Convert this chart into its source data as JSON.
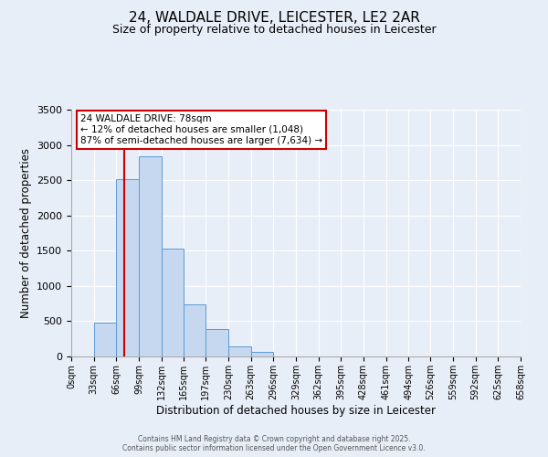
{
  "title": "24, WALDALE DRIVE, LEICESTER, LE2 2AR",
  "subtitle": "Size of property relative to detached houses in Leicester",
  "xlabel": "Distribution of detached houses by size in Leicester",
  "ylabel": "Number of detached properties",
  "bar_values": [
    0,
    480,
    2520,
    2840,
    1530,
    740,
    390,
    145,
    60,
    0,
    0,
    0,
    0,
    0,
    0,
    0,
    0,
    0,
    0,
    0
  ],
  "bin_edges": [
    0,
    33,
    66,
    99,
    132,
    165,
    197,
    230,
    263,
    296,
    329,
    362,
    395,
    428,
    461,
    494,
    526,
    559,
    592,
    625,
    658
  ],
  "tick_labels": [
    "0sqm",
    "33sqm",
    "66sqm",
    "99sqm",
    "132sqm",
    "165sqm",
    "197sqm",
    "230sqm",
    "263sqm",
    "296sqm",
    "329sqm",
    "362sqm",
    "395sqm",
    "428sqm",
    "461sqm",
    "494sqm",
    "526sqm",
    "559sqm",
    "592sqm",
    "625sqm",
    "658sqm"
  ],
  "bar_color": "#c5d8f0",
  "bar_edge_color": "#5b9bd5",
  "vline_x": 78,
  "vline_color": "#cc0000",
  "ylim": [
    0,
    3500
  ],
  "yticks": [
    0,
    500,
    1000,
    1500,
    2000,
    2500,
    3000,
    3500
  ],
  "annotation_title": "24 WALDALE DRIVE: 78sqm",
  "annotation_line1": "← 12% of detached houses are smaller (1,048)",
  "annotation_line2": "87% of semi-detached houses are larger (7,634) →",
  "annotation_box_color": "#ffffff",
  "annotation_box_edge": "#cc0000",
  "bg_color": "#e8eef8",
  "footer1": "Contains HM Land Registry data © Crown copyright and database right 2025.",
  "footer2": "Contains public sector information licensed under the Open Government Licence v3.0.",
  "title_fontsize": 11,
  "subtitle_fontsize": 9
}
